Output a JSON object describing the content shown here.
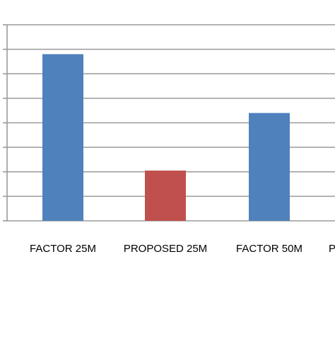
{
  "chart_data": {
    "type": "bar",
    "title": "",
    "xlabel": "",
    "ylabel": "",
    "categories": [
      "FACTOR 25M",
      "PROPOSED 25M",
      "FACTOR 50M",
      "P"
    ],
    "values": [
      6.8,
      2.05,
      4.4,
      null
    ],
    "bar_colors": [
      "#4f81bd",
      "#c0504d",
      "#4f81bd",
      "#4f81bd"
    ],
    "ylim": [
      0,
      8
    ],
    "y_ticks": [
      0,
      1,
      2,
      3,
      4,
      5,
      6,
      7,
      8
    ],
    "grid": true,
    "grid_color": "#9a9a9a",
    "axis_color": "#9a9a9a",
    "legend": "none"
  }
}
